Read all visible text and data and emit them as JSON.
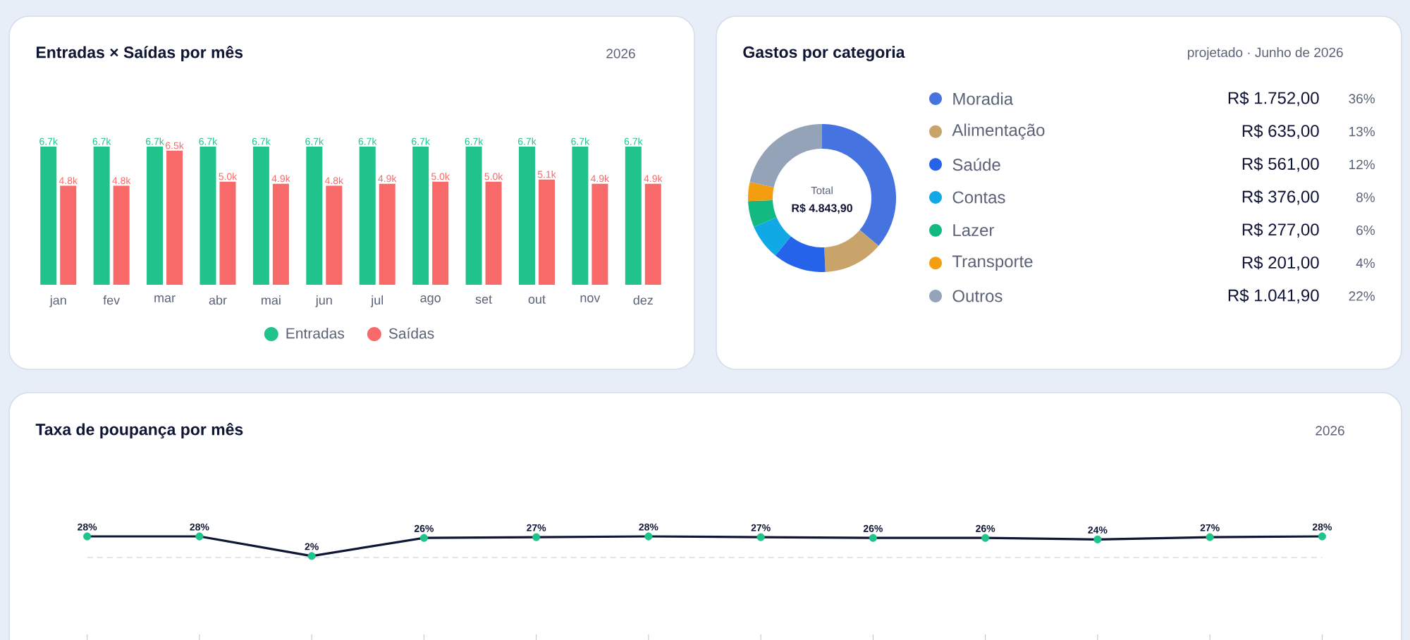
{
  "chart_data": [
    {
      "type": "bar",
      "title": "Entradas × Saídas por mês",
      "subtitle": "2026",
      "categories": [
        "jan",
        "fev",
        "mar",
        "abr",
        "mai",
        "jun",
        "jul",
        "ago",
        "set",
        "out",
        "nov",
        "dez"
      ],
      "series": [
        {
          "name": "Entradas",
          "color": "#1fc38b",
          "values": [
            6700,
            6700,
            6700,
            6700,
            6700,
            6700,
            6700,
            6700,
            6700,
            6700,
            6700,
            6700
          ],
          "value_labels": [
            "6.7k",
            "6.7k",
            "6.7k",
            "6.7k",
            "6.7k",
            "6.7k",
            "6.7k",
            "6.7k",
            "6.7k",
            "6.7k",
            "6.7k",
            "6.7k"
          ]
        },
        {
          "name": "Saídas",
          "color": "#f86a6a",
          "values": [
            4800,
            4800,
            6500,
            5000,
            4900,
            4800,
            4900,
            5000,
            5000,
            5100,
            4900,
            4900
          ],
          "value_labels": [
            "4.8k",
            "4.8k",
            "6.5k",
            "5.0k",
            "4.9k",
            "4.8k",
            "4.9k",
            "5.0k",
            "5.0k",
            "5.1k",
            "4.9k",
            "4.9k"
          ]
        }
      ],
      "legend": "bottom"
    },
    {
      "type": "donut",
      "title": "Gastos por categoria",
      "subtitle": "projetado · Junho de 2026",
      "categories": [
        "Moradia",
        "Alimentação",
        "Saúde",
        "Contas",
        "Lazer",
        "Transporte",
        "Outros"
      ],
      "values": [
        1752,
        635,
        561,
        376,
        277,
        201,
        1041.9
      ],
      "colors": [
        "#4573e0",
        "#c9a46a",
        "#2563eb",
        "#11a8e6",
        "#12b981",
        "#f29e0f",
        "#94a3b8"
      ],
      "value_labels": [
        "R$ 1.752,00",
        "R$ 635,00",
        "R$ 561,00",
        "R$ 376,00",
        "R$ 277,00",
        "R$ 201,00",
        "R$ 1.041,90"
      ],
      "annotations": [
        "Total",
        "R$ 4.843,90",
        "36%",
        "13%",
        "12%",
        "8%",
        "6%",
        "4%",
        "22%"
      ],
      "legend": "right"
    },
    {
      "type": "line",
      "title": "Taxa de poupança por mês",
      "subtitle": "2026",
      "categories": [
        null,
        null,
        null,
        null,
        null,
        null,
        null,
        null,
        null,
        null,
        null,
        null
      ],
      "series": [
        {
          "color": "#0f1535",
          "colors": [
            "#1fc38b",
            "#1fc38b",
            "#1fc38b",
            "#1fc38b",
            "#1fc38b",
            "#1fc38b",
            "#1fc38b",
            "#1fc38b",
            "#1fc38b",
            "#1fc38b",
            "#1fc38b",
            "#1fc38b"
          ],
          "values": [
            28,
            28,
            2,
            26,
            27,
            28,
            27,
            26,
            26,
            24,
            27,
            28
          ],
          "value_labels": [
            "28%",
            "28%",
            "2%",
            "26%",
            "27%",
            "28%",
            "27%",
            "26%",
            "26%",
            "24%",
            "27%",
            "28%"
          ]
        }
      ],
      "marker": "circle",
      "ref_lines": [
        {
          "axis": "y",
          "value": 0,
          "color": "#d5dde6",
          "line_style": "dashed"
        }
      ]
    }
  ]
}
